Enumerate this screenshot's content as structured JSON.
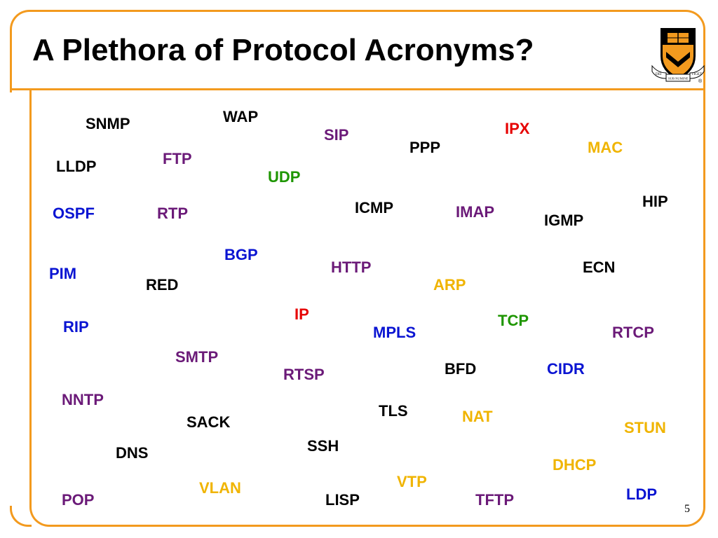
{
  "slide": {
    "title": "A Plethora of Protocol Acronyms?",
    "page_number": "5",
    "logo": {
      "icon": "princeton-shield-icon",
      "motto": [
        "DEI",
        "SUB NUMINE",
        "VIGET"
      ],
      "registered_mark": "®"
    },
    "colors": {
      "frame": "#f39a1e",
      "black": "#000000",
      "purple": "#6b1a78",
      "red": "#e60000",
      "gold": "#f0b400",
      "green": "#1e9600",
      "blue": "#0a14d2"
    }
  },
  "acronyms": [
    {
      "text": "SNMP",
      "color": "black"
    },
    {
      "text": "WAP",
      "color": "black"
    },
    {
      "text": "SIP",
      "color": "purple"
    },
    {
      "text": "IPX",
      "color": "red"
    },
    {
      "text": "PPP",
      "color": "black"
    },
    {
      "text": "MAC",
      "color": "gold"
    },
    {
      "text": "FTP",
      "color": "purple"
    },
    {
      "text": "LLDP",
      "color": "black"
    },
    {
      "text": "UDP",
      "color": "green"
    },
    {
      "text": "HIP",
      "color": "black"
    },
    {
      "text": "ICMP",
      "color": "black"
    },
    {
      "text": "OSPF",
      "color": "blue"
    },
    {
      "text": "RTP",
      "color": "purple"
    },
    {
      "text": "IMAP",
      "color": "purple"
    },
    {
      "text": "IGMP",
      "color": "black"
    },
    {
      "text": "BGP",
      "color": "blue"
    },
    {
      "text": "HTTP",
      "color": "purple"
    },
    {
      "text": "ECN",
      "color": "black"
    },
    {
      "text": "PIM",
      "color": "blue"
    },
    {
      "text": "RED",
      "color": "black"
    },
    {
      "text": "ARP",
      "color": "gold"
    },
    {
      "text": "IP",
      "color": "red"
    },
    {
      "text": "TCP",
      "color": "green"
    },
    {
      "text": "RIP",
      "color": "blue"
    },
    {
      "text": "MPLS",
      "color": "blue"
    },
    {
      "text": "RTCP",
      "color": "purple"
    },
    {
      "text": "SMTP",
      "color": "purple"
    },
    {
      "text": "BFD",
      "color": "black"
    },
    {
      "text": "CIDR",
      "color": "blue"
    },
    {
      "text": "RTSP",
      "color": "purple"
    },
    {
      "text": "NNTP",
      "color": "purple"
    },
    {
      "text": "TLS",
      "color": "black"
    },
    {
      "text": "NAT",
      "color": "gold"
    },
    {
      "text": "SACK",
      "color": "black"
    },
    {
      "text": "STUN",
      "color": "gold"
    },
    {
      "text": "SSH",
      "color": "black"
    },
    {
      "text": "DNS",
      "color": "black"
    },
    {
      "text": "DHCP",
      "color": "gold"
    },
    {
      "text": "VTP",
      "color": "gold"
    },
    {
      "text": "VLAN",
      "color": "gold"
    },
    {
      "text": "LDP",
      "color": "blue"
    },
    {
      "text": "POP",
      "color": "purple"
    },
    {
      "text": "LISP",
      "color": "black"
    },
    {
      "text": "TFTP",
      "color": "purple"
    }
  ]
}
